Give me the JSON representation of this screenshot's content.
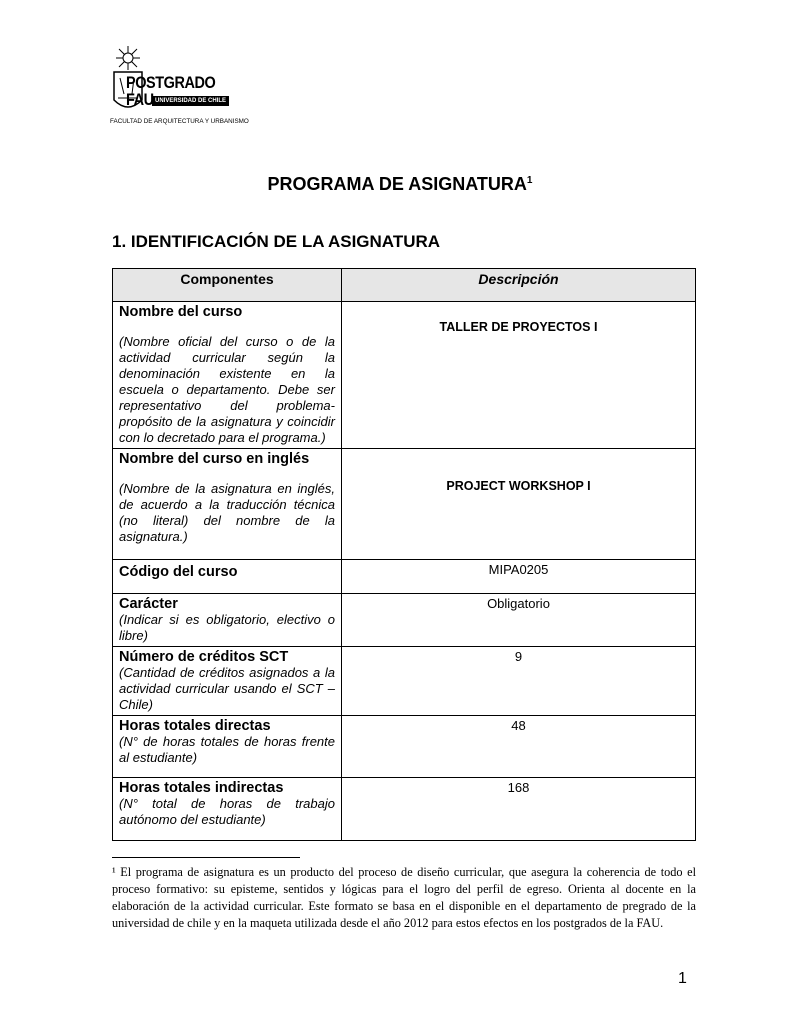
{
  "logo": {
    "name": "POSTGRADO FAU",
    "line1": "POSTGRADO",
    "line2": "FAU",
    "badge": "UNIVERSIDAD DE CHILE",
    "faculty": "FACULTAD DE ARQUITECTURA Y URBANISMO"
  },
  "title": "PROGRAMA DE ASIGNATURA",
  "title_note": "1",
  "section": "1. IDENTIFICACIÓN DE LA ASIGNATURA",
  "table": {
    "headers": [
      "Componentes",
      "Descripción"
    ],
    "rows": [
      {
        "label": "Nombre del curso",
        "hint": "(Nombre oficial del curso o de la actividad curricular según la denominación existente en la escuela o departamento. Debe ser representativo del problema-propósito de la asignatura y coincidir con lo decretado para el programa.)",
        "value": "TALLER DE PROYECTOS I"
      },
      {
        "label": "Nombre del curso en inglés",
        "hint": "(Nombre de la asignatura en inglés, de acuerdo a la traducción técnica (no literal) del nombre de la asignatura.)",
        "value": "PROJECT WORKSHOP I"
      },
      {
        "label": "Código del curso",
        "hint": "",
        "value": "MIPA0205"
      },
      {
        "label": "Carácter",
        "hint": "(Indicar si es obligatorio, electivo o libre)",
        "value": "Obligatorio"
      },
      {
        "label": "Número de créditos SCT",
        "hint": "(Cantidad de créditos asignados a la actividad curricular usando el SCT – Chile)",
        "value": "9"
      },
      {
        "label": "Horas totales directas",
        "hint": "(N° de horas totales de horas frente al estudiante)",
        "value": "48"
      },
      {
        "label": "Horas totales indirectas",
        "hint": "(N° total de horas de trabajo autónomo del estudiante)",
        "value": "168"
      }
    ]
  },
  "footnote": "¹ El programa de asignatura es un producto del proceso de diseño curricular, que asegura la coherencia de todo el proceso formativo: su episteme, sentidos y lógicas para el logro del perfil de egreso. Orienta al docente en la elaboración de la actividad curricular. Este formato se basa en el disponible en el departamento de pregrado de la universidad de chile y en la maqueta utilizada desde el año 2012 para estos efectos en los postgrados de la FAU.",
  "page_number": "1"
}
